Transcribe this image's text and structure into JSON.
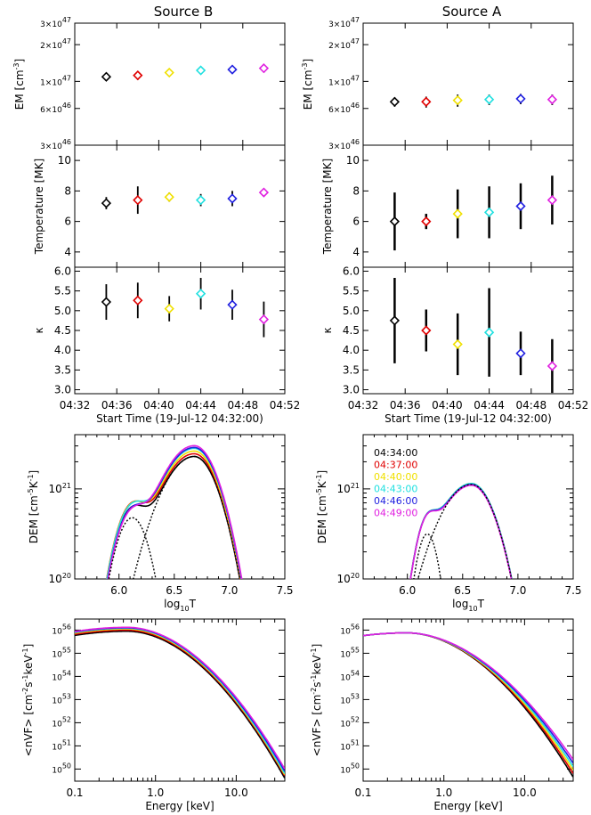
{
  "figure": {
    "titles": [
      "Source B",
      "Source A"
    ],
    "times": [
      "04:34:00",
      "04:37:00",
      "04:40:00",
      "04:43:00",
      "04:46:00",
      "04:49:00"
    ],
    "colors": [
      "#000000",
      "#e00000",
      "#f0e000",
      "#20e0e0",
      "#2020e0",
      "#e020e0"
    ],
    "time_xlabel": "Start Time (19-Jul-12 04:32:00)",
    "time_ticks": [
      "04:32",
      "04:36",
      "04:40",
      "04:44",
      "04:48",
      "04:52"
    ]
  },
  "chart_data": [
    {
      "id": "em_b",
      "type": "scatter",
      "panel": "Source B",
      "ylabel": "EM [cm^-3]",
      "yscale": "log",
      "ylim": [
        3e+46,
        3e+47
      ],
      "xlim": [
        0,
        20
      ],
      "ytick_labels": [
        "3x10^47",
        "2x10^47",
        "1x10^47",
        "6x10^46",
        "3x10^46"
      ],
      "x": [
        3,
        6,
        9,
        12,
        15,
        18
      ],
      "values": [
        1.09e+47,
        1.12e+47,
        1.18e+47,
        1.23e+47,
        1.25e+47,
        1.28e+47
      ],
      "err": [
        6e+45,
        9e+45,
        7e+45,
        8e+45,
        7e+45,
        1e+46
      ]
    },
    {
      "id": "em_a",
      "type": "scatter",
      "panel": "Source A",
      "ylabel": "EM [cm^-3]",
      "yscale": "log",
      "ylim": [
        3e+46,
        3e+47
      ],
      "xlim": [
        0,
        20
      ],
      "ytick_labels": [
        "3x10^47",
        "2x10^47",
        "1x10^47",
        "6x10^46",
        "3x10^46"
      ],
      "x": [
        3,
        6,
        9,
        12,
        15,
        18
      ],
      "values": [
        6.8e+46,
        6.8e+46,
        7e+46,
        7.1e+46,
        7.2e+46,
        7.1e+46
      ],
      "err": [
        6e+45,
        7e+45,
        8e+45,
        7e+45,
        7e+45,
        7e+45
      ]
    },
    {
      "id": "temp_b",
      "type": "scatter",
      "panel": "Source B",
      "ylabel": "Temperature [MK]",
      "ylim": [
        3,
        11
      ],
      "xlim": [
        0,
        20
      ],
      "yticks": [
        4,
        6,
        8,
        10
      ],
      "x": [
        3,
        6,
        9,
        12,
        15,
        18
      ],
      "values": [
        7.2,
        7.4,
        7.6,
        7.4,
        7.5,
        7.9
      ],
      "err": [
        0.4,
        0.9,
        0.3,
        0.4,
        0.5,
        0.2
      ]
    },
    {
      "id": "temp_a",
      "type": "scatter",
      "panel": "Source A",
      "ylabel": "Temperature [MK]",
      "ylim": [
        3,
        11
      ],
      "xlim": [
        0,
        20
      ],
      "yticks": [
        4,
        6,
        8,
        10
      ],
      "x": [
        3,
        6,
        9,
        12,
        15,
        18
      ],
      "values": [
        6.0,
        6.0,
        6.5,
        6.6,
        7.0,
        7.4
      ],
      "err": [
        1.9,
        0.5,
        1.6,
        1.7,
        1.5,
        1.6
      ]
    },
    {
      "id": "kappa_b",
      "type": "scatter",
      "panel": "Source B",
      "ylabel": "κ",
      "xlabel": "Start Time (19-Jul-12 04:32:00)",
      "ylim": [
        2.9,
        6.1
      ],
      "xlim": [
        0,
        20
      ],
      "yticks": [
        3.0,
        3.5,
        4.0,
        4.5,
        5.0,
        5.5,
        6.0
      ],
      "x": [
        3,
        6,
        9,
        12,
        15,
        18
      ],
      "values": [
        5.22,
        5.26,
        5.05,
        5.43,
        5.15,
        4.78
      ],
      "err": [
        0.45,
        0.45,
        0.32,
        0.4,
        0.38,
        0.45
      ]
    },
    {
      "id": "kappa_a",
      "type": "scatter",
      "panel": "Source A",
      "ylabel": "κ",
      "xlabel": "Start Time (19-Jul-12 04:32:00)",
      "ylim": [
        2.9,
        6.1
      ],
      "xlim": [
        0,
        20
      ],
      "yticks": [
        3.0,
        3.5,
        4.0,
        4.5,
        5.0,
        5.5,
        6.0
      ],
      "x": [
        3,
        6,
        9,
        12,
        15,
        18
      ],
      "values": [
        4.75,
        4.5,
        4.15,
        4.45,
        3.92,
        3.6
      ],
      "err": [
        1.08,
        0.53,
        0.78,
        1.12,
        0.55,
        0.68
      ]
    },
    {
      "id": "dem_b",
      "type": "line",
      "panel": "Source B",
      "ylabel": "DEM [cm^-5K^-1]",
      "xlabel": "log10T",
      "yscale": "log",
      "xlim": [
        5.6,
        7.5
      ],
      "ylim": [
        1e+20,
        4e+21
      ],
      "xticks": [
        6.0,
        6.5,
        7.0,
        7.5
      ],
      "ytick_labels": [
        "10^20",
        "10^21"
      ],
      "lowT": {
        "peak_logT": 6.12,
        "peak_log_dem": [
          20.74,
          20.79,
          20.78,
          20.77,
          20.72,
          20.7
        ],
        "sigma": 0.12
      },
      "highT": {
        "peak_logT": 6.68,
        "peak_log_dem": [
          21.36,
          21.39,
          21.42,
          21.45,
          21.46,
          21.48
        ],
        "width": 0.22
      },
      "components": {
        "low_peak_logT": 6.12,
        "low_peak_log_dem": 20.68,
        "high_peak_logT": 6.68,
        "high_peak_log_dem": 21.36
      }
    },
    {
      "id": "dem_a",
      "type": "line",
      "panel": "Source A",
      "ylabel": "DEM [cm^-5K^-1]",
      "xlabel": "log10T",
      "yscale": "log",
      "xlim": [
        5.6,
        7.5
      ],
      "ylim": [
        1e+20,
        4e+21
      ],
      "xticks": [
        6.0,
        6.5,
        7.0,
        7.5
      ],
      "ytick_labels": [
        "10^20",
        "10^21"
      ],
      "legend": [
        "04:34:00",
        "04:37:00",
        "04:40:00",
        "04:43:00",
        "04:46:00",
        "04:49:00"
      ],
      "lowT": {
        "peak_logT": 6.18,
        "peak_log_dem": [
          20.5,
          20.5,
          20.5,
          20.5,
          20.5,
          20.5
        ],
        "sigma": 0.08
      },
      "highT": {
        "peak_logT": 6.58,
        "peak_log_dem": [
          21.05,
          21.05,
          21.06,
          21.06,
          21.05,
          21.04
        ],
        "width": 0.22
      },
      "components": {
        "low_peak_logT": 6.18,
        "low_peak_log_dem": 20.5,
        "high_peak_logT": 6.58,
        "high_peak_log_dem": 21.05
      }
    },
    {
      "id": "nvf_b",
      "type": "line",
      "panel": "Source B",
      "ylabel": "<nVF> [cm^-2s^-1keV^-1]",
      "xlabel": "Energy [keV]",
      "xscale": "log",
      "yscale": "log",
      "xlim": [
        0.1,
        40
      ],
      "ylim": [
        3e+49,
        3e+56
      ],
      "xticks": [
        0.1,
        1.0,
        10.0
      ],
      "ytick_labels": [
        "10^50",
        "10^51",
        "10^52",
        "10^53",
        "10^54",
        "10^55",
        "10^56"
      ],
      "peak_log_nvf": [
        55.95,
        56.0,
        56.05,
        56.08,
        56.1,
        56.12
      ],
      "log_nvf_at_40keV": [
        49.6,
        49.7,
        49.75,
        49.8,
        49.9,
        50.0
      ]
    },
    {
      "id": "nvf_a",
      "type": "line",
      "panel": "Source A",
      "ylabel": "<nVF> [cm^-2s^-1keV^-1]",
      "xlabel": "Energy [keV]",
      "xscale": "log",
      "yscale": "log",
      "xlim": [
        0.1,
        40
      ],
      "ylim": [
        3e+49,
        3e+56
      ],
      "xticks": [
        0.1,
        1.0,
        10.0
      ],
      "ytick_labels": [
        "10^50",
        "10^51",
        "10^52",
        "10^53",
        "10^54",
        "10^55",
        "10^56"
      ],
      "peak_log_nvf": [
        55.88,
        55.88,
        55.88,
        55.88,
        55.88,
        55.88
      ],
      "log_nvf_at_40keV": [
        49.65,
        49.8,
        49.95,
        50.1,
        50.25,
        50.4
      ]
    }
  ]
}
